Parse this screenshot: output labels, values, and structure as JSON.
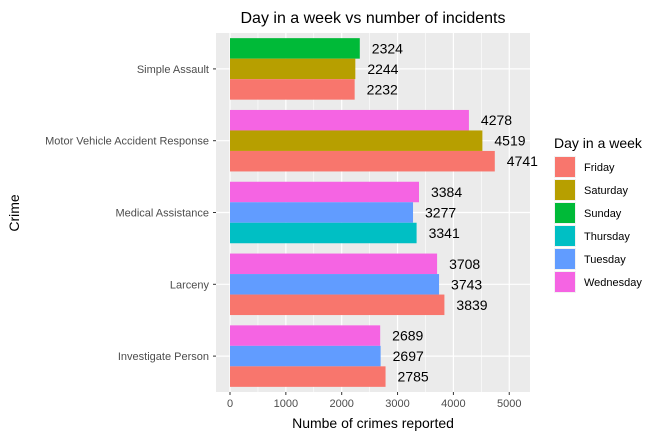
{
  "chart_data": {
    "type": "bar",
    "orientation": "horizontal",
    "title": "Day in a week vs number of incidents",
    "xlabel": "Numbe of crimes reported",
    "ylabel": "Crime",
    "xlim": [
      0,
      5400
    ],
    "x_ticks": [
      0,
      1000,
      2000,
      3000,
      4000,
      5000
    ],
    "x_tick_labels": [
      "0",
      "1000",
      "2000",
      "3000",
      "4000",
      "5000"
    ],
    "grid": true,
    "categories": [
      "Simple Assault",
      "Motor Vehicle Accident Response",
      "Medical Assistance",
      "Larceny",
      "Investigate Person"
    ],
    "groups": [
      {
        "category": "Simple Assault",
        "bars": [
          {
            "day": "Sunday",
            "value": 2324
          },
          {
            "day": "Saturday",
            "value": 2244
          },
          {
            "day": "Friday",
            "value": 2232
          }
        ]
      },
      {
        "category": "Motor Vehicle Accident Response",
        "bars": [
          {
            "day": "Wednesday",
            "value": 4278
          },
          {
            "day": "Saturday",
            "value": 4519
          },
          {
            "day": "Friday",
            "value": 4741
          }
        ]
      },
      {
        "category": "Medical Assistance",
        "bars": [
          {
            "day": "Wednesday",
            "value": 3384
          },
          {
            "day": "Tuesday",
            "value": 3277
          },
          {
            "day": "Thursday",
            "value": 3341
          }
        ]
      },
      {
        "category": "Larceny",
        "bars": [
          {
            "day": "Wednesday",
            "value": 3708
          },
          {
            "day": "Tuesday",
            "value": 3743
          },
          {
            "day": "Friday",
            "value": 3839
          }
        ]
      },
      {
        "category": "Investigate Person",
        "bars": [
          {
            "day": "Wednesday",
            "value": 2689
          },
          {
            "day": "Tuesday",
            "value": 2697
          },
          {
            "day": "Friday",
            "value": 2785
          }
        ]
      }
    ],
    "legend": {
      "title": "Day in a week",
      "position": "right",
      "entries": [
        {
          "name": "Friday",
          "color": "#F8766D"
        },
        {
          "name": "Saturday",
          "color": "#B79F00"
        },
        {
          "name": "Sunday",
          "color": "#00BA38"
        },
        {
          "name": "Thursday",
          "color": "#00BFC4"
        },
        {
          "name": "Tuesday",
          "color": "#619CFF"
        },
        {
          "name": "Wednesday",
          "color": "#F564E3"
        }
      ]
    },
    "panel_background": "#EBEBEB",
    "grid_color": "#FFFFFF"
  }
}
